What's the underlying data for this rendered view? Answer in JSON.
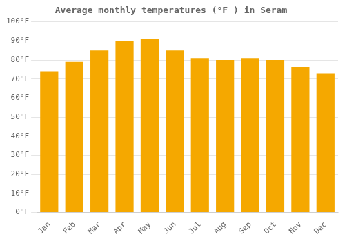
{
  "chart_data": {
    "type": "bar",
    "title": "Average monthly temperatures (°F ) in Seram",
    "categories": [
      "Jan",
      "Feb",
      "Mar",
      "Apr",
      "May",
      "Jun",
      "Jul",
      "Aug",
      "Sep",
      "Oct",
      "Nov",
      "Dec"
    ],
    "values": [
      74,
      79,
      85,
      90,
      91,
      85,
      81,
      80,
      81,
      80,
      76,
      73
    ],
    "color": "#F5A800",
    "ylim": [
      0,
      100
    ],
    "yticks": [
      {
        "value": 0,
        "label": "0°F"
      },
      {
        "value": 10,
        "label": "10°F"
      },
      {
        "value": 20,
        "label": "20°F"
      },
      {
        "value": 30,
        "label": "30°F"
      },
      {
        "value": 40,
        "label": "40°F"
      },
      {
        "value": 50,
        "label": "50°F"
      },
      {
        "value": 60,
        "label": "60°F"
      },
      {
        "value": 70,
        "label": "70°F"
      },
      {
        "value": 80,
        "label": "80°F"
      },
      {
        "value": 90,
        "label": "90°F"
      },
      {
        "value": 100,
        "label": "100°F"
      }
    ],
    "grid": true
  }
}
